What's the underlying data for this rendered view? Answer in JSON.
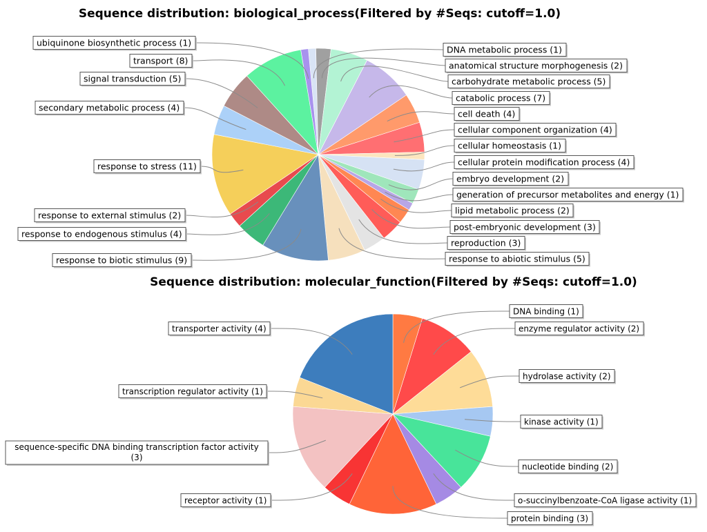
{
  "chart_data": [
    {
      "type": "pie",
      "title": "Sequence distribution: biological_process(Filtered by #Seqs: cutoff=1.0)",
      "slices": [
        {
          "label": "DNA metabolic process (1)",
          "name": "DNA metabolic process",
          "value": 1,
          "color": "#d9e4f5"
        },
        {
          "label": "anatomical structure morphogenesis (2)",
          "name": "anatomical structure morphogenesis",
          "value": 2,
          "color": "#a0a0a0"
        },
        {
          "label": "carbohydrate metabolic process (5)",
          "name": "carbohydrate metabolic process",
          "value": 5,
          "color": "#b3f3d4"
        },
        {
          "label": "catabolic process (7)",
          "name": "catabolic process",
          "value": 7,
          "color": "#c6b8ea"
        },
        {
          "label": "cell death (4)",
          "name": "cell death",
          "value": 4,
          "color": "#ff9a6b"
        },
        {
          "label": "cellular component organization (4)",
          "name": "cellular component organization",
          "value": 4,
          "color": "#ff6f72"
        },
        {
          "label": "cellular homeostasis (1)",
          "name": "cellular homeostasis",
          "value": 1,
          "color": "#fce6bf"
        },
        {
          "label": "cellular protein modification process (4)",
          "name": "cellular protein modification process",
          "value": 4,
          "color": "#d6e2f4"
        },
        {
          "label": "embryo development (2)",
          "name": "embryo development",
          "value": 2,
          "color": "#9fe6bb"
        },
        {
          "label": "generation of precursor metabolites and energy (1)",
          "name": "generation of precursor metabolites and energy",
          "value": 1,
          "color": "#b8a6e6"
        },
        {
          "label": "lipid metabolic process (2)",
          "name": "lipid metabolic process",
          "value": 2,
          "color": "#ff8752"
        },
        {
          "label": "post-embryonic development (3)",
          "name": "post-embryonic development",
          "value": 3,
          "color": "#ff5c58"
        },
        {
          "label": "reproduction (3)",
          "name": "reproduction",
          "value": 3,
          "color": "#e4e4e4"
        },
        {
          "label": "response to abiotic stimulus (5)",
          "name": "response to abiotic stimulus",
          "value": 5,
          "color": "#f6e0bd"
        },
        {
          "label": "response to biotic stimulus (9)",
          "name": "response to biotic stimulus",
          "value": 9,
          "color": "#6890bc"
        },
        {
          "label": "response to endogenous stimulus (4)",
          "name": "response to endogenous stimulus",
          "value": 4,
          "color": "#3cb878"
        },
        {
          "label": "response to external stimulus (2)",
          "name": "response to external stimulus",
          "value": 2,
          "color": "#e84a4e"
        },
        {
          "label": "response to stress (11)",
          "name": "response to stress",
          "value": 11,
          "color": "#f5cf5a"
        },
        {
          "label": "secondary metabolic process (4)",
          "name": "secondary metabolic process",
          "value": 4,
          "color": "#acd1f8"
        },
        {
          "label": "signal transduction (5)",
          "name": "signal transduction",
          "value": 5,
          "color": "#ae8a86"
        },
        {
          "label": "transport (8)",
          "name": "transport",
          "value": 8,
          "color": "#5cf2a0"
        },
        {
          "label": "ubiquinone biosynthetic process (1)",
          "name": "ubiquinone biosynthetic process",
          "value": 1,
          "color": "#a892ee"
        }
      ]
    },
    {
      "type": "pie",
      "title": "Sequence distribution: molecular_function(Filtered by #Seqs: cutoff=1.0)",
      "slices": [
        {
          "label": "DNA binding (1)",
          "name": "DNA binding",
          "value": 1,
          "color": "#ff7a42"
        },
        {
          "label": "enzyme regulator activity (2)",
          "name": "enzyme regulator activity",
          "value": 2,
          "color": "#ff4a4a"
        },
        {
          "label": "hydrolase activity (2)",
          "name": "hydrolase activity",
          "value": 2,
          "color": "#fedc98"
        },
        {
          "label": "kinase activity (1)",
          "name": "kinase activity",
          "value": 1,
          "color": "#a6c8f2"
        },
        {
          "label": "nucleotide binding (2)",
          "name": "nucleotide binding",
          "value": 2,
          "color": "#48e49a"
        },
        {
          "label": "o-succinylbenzoate-CoA ligase activity (1)",
          "name": "o-succinylbenzoate-CoA ligase activity",
          "value": 1,
          "color": "#a58ae4"
        },
        {
          "label": "protein binding (3)",
          "name": "protein binding",
          "value": 3,
          "color": "#ff6438"
        },
        {
          "label": "receptor activity (1)",
          "name": "receptor activity",
          "value": 1,
          "color": "#f83434"
        },
        {
          "label": "sequence-specific DNA binding transcription factor activity (3)",
          "name": "sequence-specific DNA binding transcription factor activity",
          "value": 3,
          "color": "#f3c2c2"
        },
        {
          "label": "transcription regulator activity (1)",
          "name": "transcription regulator activity",
          "value": 1,
          "color": "#fbd894"
        },
        {
          "label": "transporter activity (4)",
          "name": "transporter activity",
          "value": 4,
          "color": "#3d7dbd"
        }
      ]
    }
  ]
}
